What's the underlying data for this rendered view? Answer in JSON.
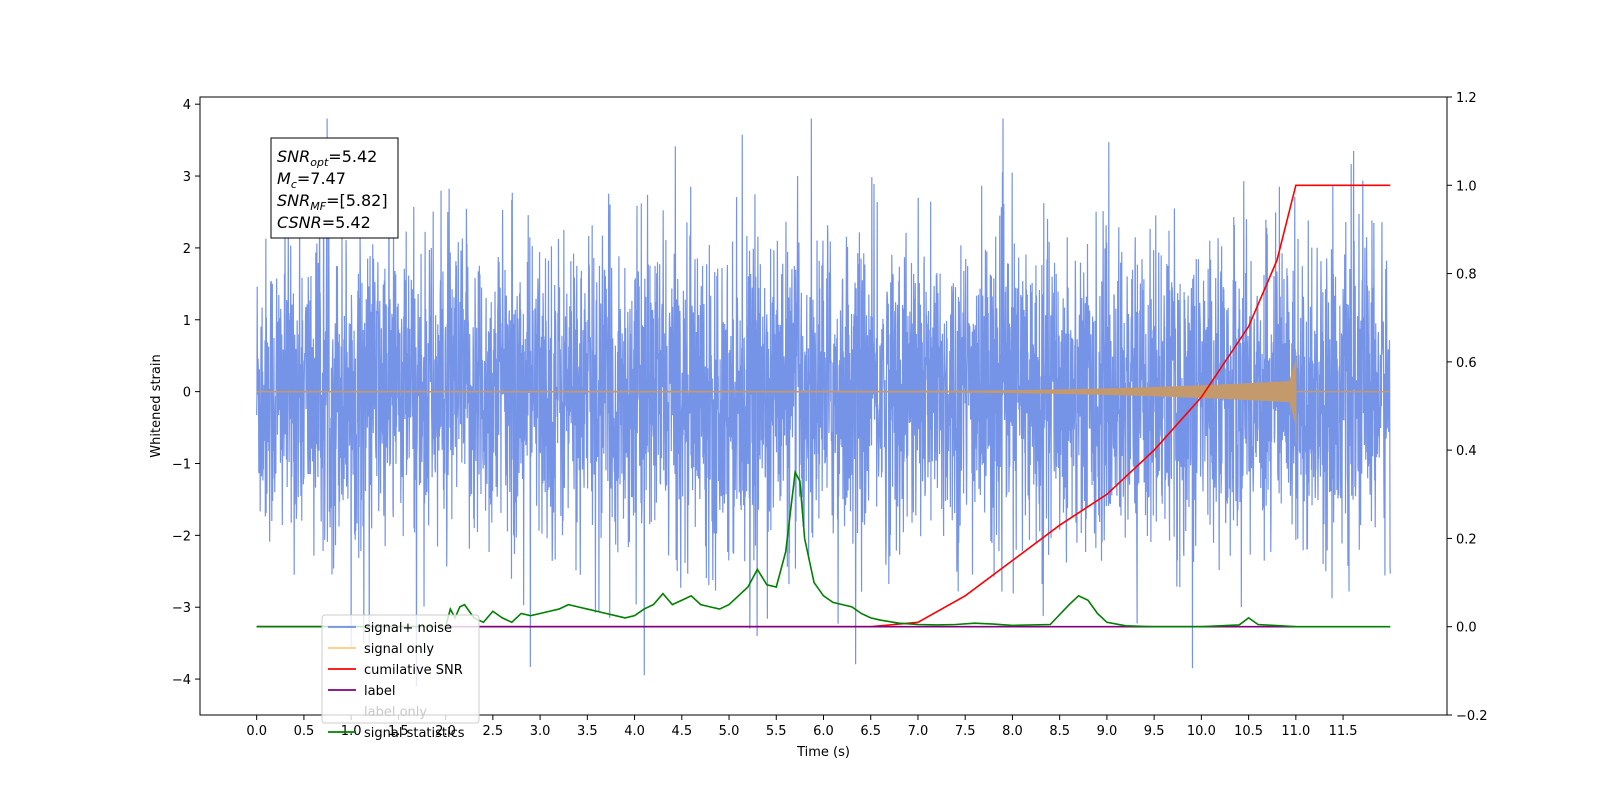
{
  "chart_data": {
    "type": "line",
    "title": "",
    "xlabel": "Time (s)",
    "ylabel": "Whitened strain",
    "y2label": "",
    "xlim": [
      -0.6,
      12.6
    ],
    "ylim": [
      -4.5,
      4.1
    ],
    "y2lim": [
      -0.2,
      1.2
    ],
    "x_ticks": [
      0.0,
      0.5,
      1.0,
      1.5,
      2.0,
      2.5,
      3.0,
      3.5,
      4.0,
      4.5,
      5.0,
      5.5,
      6.0,
      6.5,
      7.0,
      7.5,
      8.0,
      8.5,
      9.0,
      9.5,
      10.0,
      10.5,
      11.0,
      11.5
    ],
    "x_tick_labels": [
      "0.0",
      "0.5",
      "1.0",
      "1.5",
      "2.0",
      "2.5",
      "3.0",
      "3.5",
      "4.0",
      "4.5",
      "5.0",
      "5.5",
      "6.0",
      "6.5",
      "7.0",
      "7.5",
      "8.0",
      "8.5",
      "9.0",
      "9.5",
      "10.0",
      "10.5",
      "11.0",
      "11.5"
    ],
    "y_ticks": [
      -4,
      -3,
      -2,
      -1,
      0,
      1,
      2,
      3,
      4
    ],
    "y_tick_labels": [
      "−4",
      "−3",
      "−2",
      "−1",
      "0",
      "1",
      "2",
      "3",
      "4"
    ],
    "y2_ticks": [
      -0.2,
      0.0,
      0.2,
      0.4,
      0.6,
      0.8,
      1.0,
      1.2
    ],
    "y2_tick_labels": [
      "−0.2",
      "0.0",
      "0.2",
      "0.4",
      "0.6",
      "0.8",
      "1.0",
      "1.2"
    ],
    "grid": false,
    "legend_position": "lower-left",
    "series": [
      {
        "name": "signal+ noise",
        "color": "#6f8ee6",
        "axis": "left",
        "style": "noise",
        "x_range": [
          0.0,
          12.0
        ],
        "envelope_typical": 1.4,
        "envelope_peak": 3.8
      },
      {
        "name": "signal only",
        "color": "#c49a6c",
        "axis": "left",
        "style": "chirp",
        "x_range": [
          0.0,
          11.0
        ],
        "chirp_start": 6.8,
        "peak_amplitude": 0.55,
        "min_amplitude": -0.7
      },
      {
        "name": "cumilative SNR",
        "color": "#ff0000",
        "axis": "right",
        "x": [
          0.0,
          6.5,
          7.0,
          7.5,
          8.0,
          8.5,
          9.0,
          9.5,
          10.0,
          10.5,
          10.8,
          11.0,
          12.0
        ],
        "y": [
          0.0,
          0.0,
          0.01,
          0.07,
          0.15,
          0.23,
          0.3,
          0.4,
          0.52,
          0.68,
          0.83,
          1.0,
          1.0
        ]
      },
      {
        "name": "label",
        "color": "#800080",
        "axis": "right",
        "x": [
          0.0,
          11.0
        ],
        "y": [
          0.0,
          0.0
        ]
      },
      {
        "name": "label only",
        "color": "#c49a6c",
        "axis": "right",
        "hidden": true,
        "x": [],
        "y": []
      },
      {
        "name": "signal statistics",
        "color": "#008000",
        "axis": "right",
        "x": [
          0.0,
          2.0,
          2.05,
          2.1,
          2.15,
          2.2,
          2.3,
          2.4,
          2.5,
          2.6,
          2.7,
          2.8,
          2.9,
          3.0,
          3.1,
          3.2,
          3.3,
          3.4,
          3.5,
          3.6,
          3.7,
          3.8,
          3.9,
          4.0,
          4.1,
          4.2,
          4.3,
          4.4,
          4.5,
          4.6,
          4.7,
          4.8,
          4.9,
          5.0,
          5.1,
          5.2,
          5.3,
          5.4,
          5.5,
          5.6,
          5.7,
          5.75,
          5.8,
          5.9,
          6.0,
          6.1,
          6.2,
          6.3,
          6.4,
          6.5,
          6.6,
          6.8,
          7.0,
          7.2,
          7.4,
          7.6,
          7.8,
          8.0,
          8.4,
          8.6,
          8.7,
          8.8,
          8.9,
          9.0,
          9.2,
          9.5,
          10.0,
          10.4,
          10.5,
          10.6,
          11.0,
          12.0
        ],
        "y": [
          0.0,
          0.0,
          0.04,
          0.02,
          0.045,
          0.05,
          0.02,
          0.01,
          0.035,
          0.02,
          0.01,
          0.03,
          0.025,
          0.03,
          0.035,
          0.04,
          0.05,
          0.045,
          0.04,
          0.035,
          0.03,
          0.025,
          0.02,
          0.025,
          0.04,
          0.05,
          0.075,
          0.05,
          0.06,
          0.07,
          0.05,
          0.045,
          0.04,
          0.05,
          0.07,
          0.09,
          0.13,
          0.095,
          0.09,
          0.17,
          0.35,
          0.33,
          0.2,
          0.1,
          0.07,
          0.055,
          0.05,
          0.045,
          0.03,
          0.02,
          0.015,
          0.008,
          0.005,
          0.004,
          0.005,
          0.008,
          0.006,
          0.003,
          0.005,
          0.05,
          0.07,
          0.06,
          0.03,
          0.01,
          0.002,
          0.0,
          0.0,
          0.004,
          0.02,
          0.005,
          0.0,
          0.0
        ]
      }
    ],
    "annotation": {
      "lines": [
        {
          "base": "SNR",
          "sub": "opt",
          "value": "=5.42"
        },
        {
          "base": "M",
          "sub": "c",
          "value": "=7.47"
        },
        {
          "base": "SNR",
          "sub": "MF",
          "value": "=[5.82]"
        },
        {
          "base": "CSNR",
          "sub": "",
          "value": "=5.42"
        }
      ]
    }
  }
}
